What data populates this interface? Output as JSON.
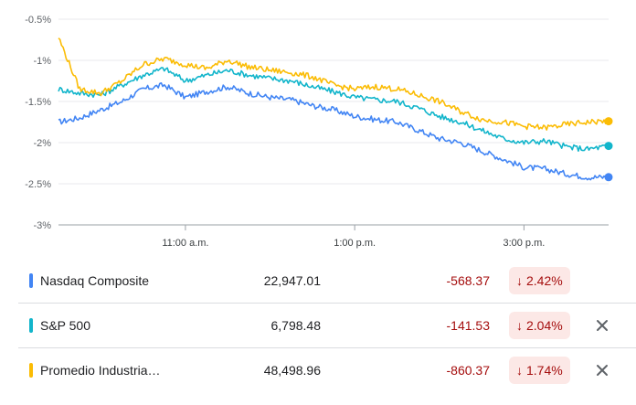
{
  "chart_data": {
    "type": "line",
    "y_ticks": [
      "-0.5%",
      "-1%",
      "-1.5%",
      "-2%",
      "-2.5%",
      "-3%"
    ],
    "y_tick_values": [
      -0.5,
      -1,
      -1.5,
      -2,
      -2.5,
      -3
    ],
    "ylim": [
      -3,
      -0.5
    ],
    "x_ticks": [
      "11:00 a.m.",
      "1:00 p.m.",
      "3:00 p.m."
    ],
    "x_tick_values": [
      "11:00",
      "13:00",
      "15:00"
    ],
    "xlim": [
      "09:30",
      "16:00"
    ],
    "grid": true,
    "series": [
      {
        "name": "Nasdaq Composite",
        "color": "#4285f4",
        "x": [
          "09:30",
          "09:45",
          "10:00",
          "10:15",
          "10:30",
          "10:45",
          "11:00",
          "11:15",
          "11:30",
          "11:45",
          "12:00",
          "12:15",
          "12:30",
          "12:45",
          "13:00",
          "13:15",
          "13:30",
          "13:45",
          "14:00",
          "14:15",
          "14:30",
          "14:45",
          "15:00",
          "15:15",
          "15:30",
          "15:45",
          "16:00"
        ],
        "values": [
          -1.75,
          -1.7,
          -1.6,
          -1.5,
          -1.35,
          -1.3,
          -1.45,
          -1.38,
          -1.32,
          -1.4,
          -1.45,
          -1.48,
          -1.55,
          -1.6,
          -1.68,
          -1.72,
          -1.75,
          -1.85,
          -1.95,
          -2.0,
          -2.1,
          -2.2,
          -2.3,
          -2.32,
          -2.38,
          -2.42,
          -2.42
        ]
      },
      {
        "name": "S&P 500",
        "color": "#12b5cb",
        "x": [
          "09:30",
          "09:45",
          "10:00",
          "10:15",
          "10:30",
          "10:45",
          "11:00",
          "11:15",
          "11:30",
          "11:45",
          "12:00",
          "12:15",
          "12:30",
          "12:45",
          "13:00",
          "13:15",
          "13:30",
          "13:45",
          "14:00",
          "14:15",
          "14:30",
          "14:45",
          "15:00",
          "15:15",
          "15:30",
          "15:45",
          "16:00"
        ],
        "values": [
          -1.35,
          -1.4,
          -1.42,
          -1.3,
          -1.18,
          -1.1,
          -1.25,
          -1.18,
          -1.12,
          -1.18,
          -1.22,
          -1.25,
          -1.32,
          -1.38,
          -1.45,
          -1.48,
          -1.5,
          -1.58,
          -1.68,
          -1.75,
          -1.85,
          -1.95,
          -2.0,
          -1.98,
          -2.05,
          -2.08,
          -2.04
        ]
      },
      {
        "name": "Promedio Industrial Dow Jones",
        "color": "#fbbc04",
        "x": [
          "09:30",
          "09:45",
          "10:00",
          "10:15",
          "10:30",
          "10:45",
          "11:00",
          "11:15",
          "11:30",
          "11:45",
          "12:00",
          "12:15",
          "12:30",
          "12:45",
          "13:00",
          "13:15",
          "13:30",
          "13:45",
          "14:00",
          "14:15",
          "14:30",
          "14:45",
          "15:00",
          "15:15",
          "15:30",
          "15:45",
          "16:00"
        ],
        "values": [
          -0.72,
          -1.35,
          -1.4,
          -1.25,
          -1.05,
          -0.98,
          -1.05,
          -1.1,
          -1.0,
          -1.08,
          -1.12,
          -1.15,
          -1.2,
          -1.3,
          -1.35,
          -1.32,
          -1.35,
          -1.42,
          -1.5,
          -1.62,
          -1.72,
          -1.75,
          -1.8,
          -1.82,
          -1.78,
          -1.75,
          -1.74
        ]
      }
    ]
  },
  "rows": [
    {
      "name": "Nasdaq Composite",
      "color": "#4285f4",
      "value": "22,947.01",
      "change": "-568.37",
      "pct": "2.42%",
      "arrow": "↓",
      "close": ""
    },
    {
      "name": "S&P 500",
      "color": "#12b5cb",
      "value": "6,798.48",
      "change": "-141.53",
      "pct": "2.04%",
      "arrow": "↓",
      "close": "✕"
    },
    {
      "name": "Promedio Industria…",
      "color": "#fbbc04",
      "value": "48,498.96",
      "change": "-860.37",
      "pct": "1.74%",
      "arrow": "↓",
      "close": "✕"
    }
  ]
}
